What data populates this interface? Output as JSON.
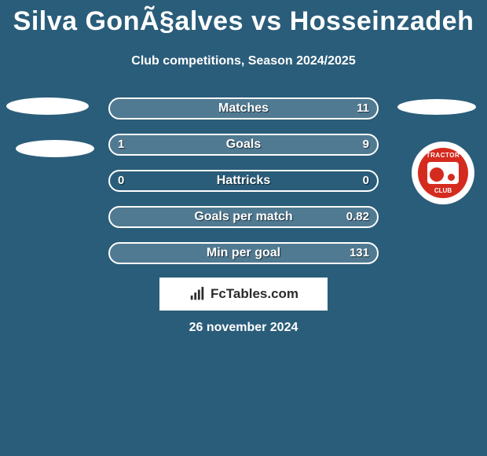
{
  "title": "Silva GonÃ§alves vs Hosseinzadeh",
  "subtitle": "Club competitions, Season 2024/2025",
  "date": "26 november 2024",
  "brand": "FcTables.com",
  "colors": {
    "background": "#2a5d7a",
    "text": "#ffffff",
    "bar_border": "#ffffff",
    "bar_fill": "rgba(255,255,255,0.18)",
    "brand_box_bg": "#ffffff",
    "brand_text": "#2b2b2b",
    "tractor_red": "#d52b1e"
  },
  "bars": [
    {
      "label": "Matches",
      "left": "",
      "right": "11",
      "left_pct": 0,
      "right_pct": 100
    },
    {
      "label": "Goals",
      "left": "1",
      "right": "9",
      "left_pct": 14,
      "right_pct": 86
    },
    {
      "label": "Hattricks",
      "left": "0",
      "right": "0",
      "left_pct": 0,
      "right_pct": 0
    },
    {
      "label": "Goals per match",
      "left": "",
      "right": "0.82",
      "left_pct": 0,
      "right_pct": 100
    },
    {
      "label": "Min per goal",
      "left": "",
      "right": "131",
      "left_pct": 0,
      "right_pct": 100
    }
  ],
  "badge": {
    "top": "TRACTOR",
    "bottom": "CLUB"
  }
}
